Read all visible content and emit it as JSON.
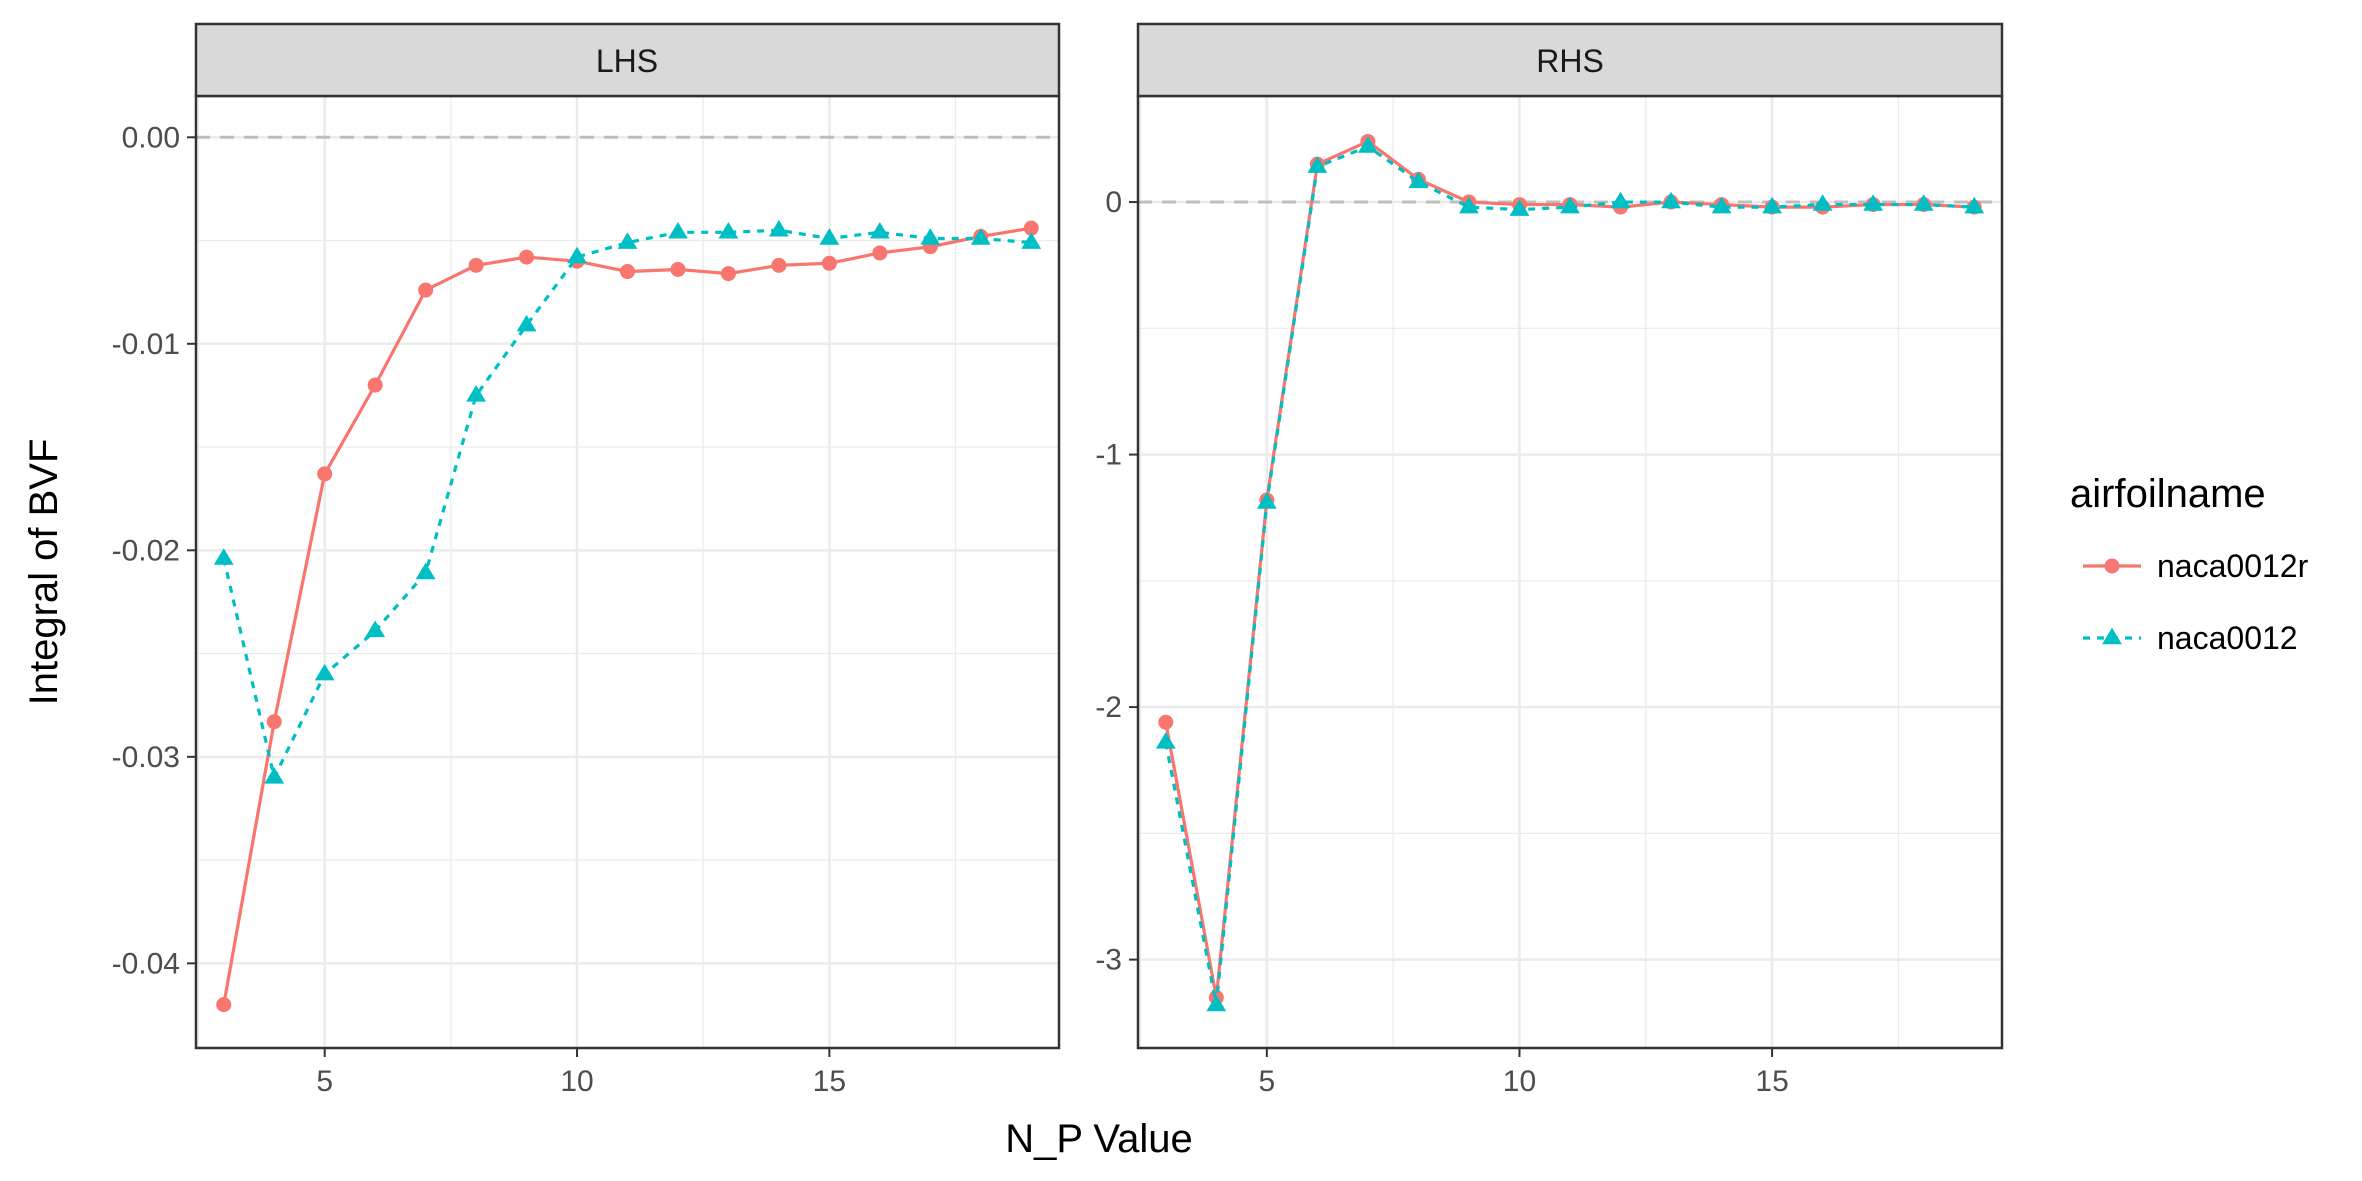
{
  "chart_data": {
    "type": "line",
    "xlabel": "N_P Value",
    "ylabel": "Integral of BVF",
    "legend": {
      "title": "airfoilname",
      "placement": "right",
      "entries": [
        {
          "name": "naca0012r",
          "color": "#F8766D",
          "shape": "circle",
          "linetype": "solid"
        },
        {
          "name": "naca0012",
          "color": "#00BFC4",
          "shape": "triangle",
          "linetype": "dashed"
        }
      ]
    },
    "grid": true,
    "reference_line_y": 0,
    "panels": [
      {
        "strip": "LHS",
        "xlim": [
          2.45,
          19.55
        ],
        "ylim": [
          -0.0441,
          0.002
        ],
        "x_major_ticks": [
          5,
          10,
          15
        ],
        "x_minor_ticks": [
          2.5,
          7.5,
          12.5,
          17.5
        ],
        "y_major_ticks": [
          0.0,
          -0.01,
          -0.02,
          -0.03,
          -0.04
        ],
        "y_tick_labels": [
          "0.00",
          "-0.01",
          "-0.02",
          "-0.03",
          "-0.04"
        ],
        "y_minor_ticks": [
          -0.005,
          -0.015,
          -0.025,
          -0.035
        ],
        "series": [
          {
            "name": "naca0012r",
            "x": [
              3,
              4,
              5,
              6,
              7,
              8,
              9,
              10,
              11,
              12,
              13,
              14,
              15,
              16,
              17,
              18,
              19
            ],
            "y": [
              -0.042,
              -0.0283,
              -0.0163,
              -0.012,
              -0.0074,
              -0.0062,
              -0.0058,
              -0.006,
              -0.0065,
              -0.0064,
              -0.0066,
              -0.0062,
              -0.0061,
              -0.0056,
              -0.0053,
              -0.0048,
              -0.0044
            ]
          },
          {
            "name": "naca0012",
            "x": [
              3,
              4,
              5,
              6,
              7,
              8,
              9,
              10,
              11,
              12,
              13,
              14,
              15,
              16,
              17,
              18,
              19
            ],
            "y": [
              -0.0204,
              -0.031,
              -0.026,
              -0.0239,
              -0.0211,
              -0.0125,
              -0.0091,
              -0.0058,
              -0.0051,
              -0.0046,
              -0.0046,
              -0.0045,
              -0.0049,
              -0.0046,
              -0.0049,
              -0.0049,
              -0.0051
            ]
          }
        ]
      },
      {
        "strip": "RHS",
        "xlim": [
          2.45,
          19.55
        ],
        "ylim": [
          -3.35,
          0.42
        ],
        "x_major_ticks": [
          5,
          10,
          15
        ],
        "x_minor_ticks": [
          2.5,
          7.5,
          12.5,
          17.5
        ],
        "y_major_ticks": [
          0,
          -1,
          -2,
          -3
        ],
        "y_tick_labels": [
          "0",
          "-1",
          "-2",
          "-3"
        ],
        "y_minor_ticks": [
          -0.5,
          -1.5,
          -2.5
        ],
        "series": [
          {
            "name": "naca0012r",
            "x": [
              3,
              4,
              5,
              6,
              7,
              8,
              9,
              10,
              11,
              12,
              13,
              14,
              15,
              16,
              17,
              18,
              19
            ],
            "y": [
              -2.06,
              -3.15,
              -1.18,
              0.15,
              0.24,
              0.09,
              0.0,
              -0.01,
              -0.01,
              -0.02,
              0.0,
              -0.01,
              -0.02,
              -0.02,
              -0.01,
              -0.01,
              -0.02
            ]
          },
          {
            "name": "naca0012",
            "x": [
              3,
              4,
              5,
              6,
              7,
              8,
              9,
              10,
              11,
              12,
              13,
              14,
              15,
              16,
              17,
              18,
              19
            ],
            "y": [
              -2.14,
              -3.18,
              -1.19,
              0.14,
              0.22,
              0.08,
              -0.02,
              -0.03,
              -0.02,
              0.0,
              0.0,
              -0.02,
              -0.02,
              -0.01,
              -0.01,
              -0.01,
              -0.02
            ]
          }
        ]
      }
    ]
  }
}
